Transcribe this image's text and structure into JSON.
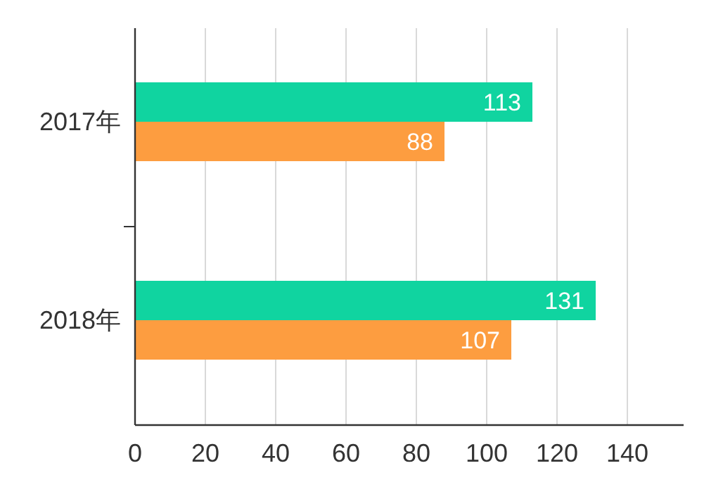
{
  "chart_data": {
    "type": "bar",
    "orientation": "horizontal",
    "categories": [
      "2017年",
      "2018年"
    ],
    "series": [
      {
        "color": "#10d4a0",
        "values": [
          113,
          131
        ]
      },
      {
        "color": "#fd9d40",
        "values": [
          88,
          107
        ]
      }
    ],
    "xlim": [
      0,
      156
    ],
    "xticks": [
      0,
      20,
      40,
      60,
      80,
      100,
      120,
      140
    ],
    "grid": "x",
    "data_labels": true
  }
}
